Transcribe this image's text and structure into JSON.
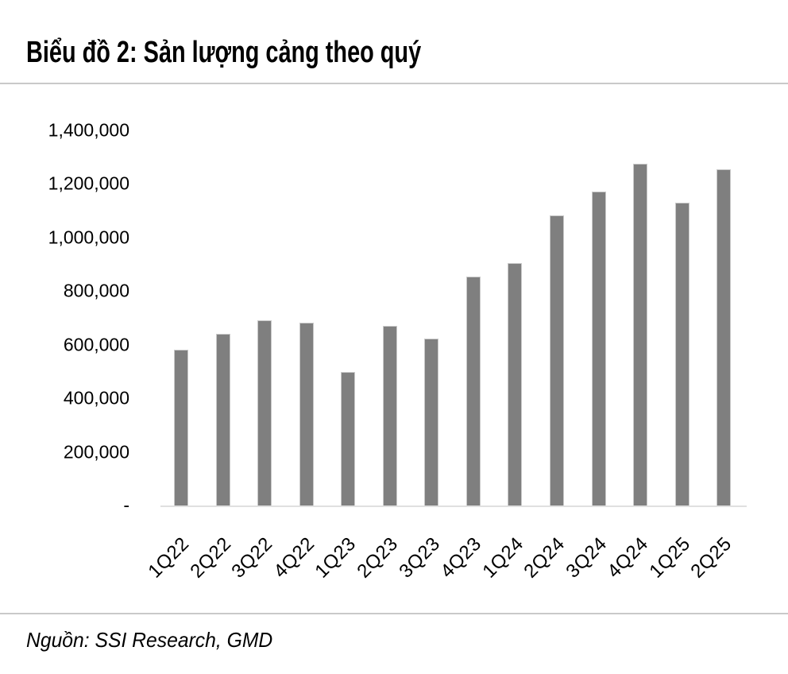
{
  "page": {
    "title": "Biểu đồ 2: Sản lượng cảng theo quý",
    "source": "Nguồn: SSI Research, GMD"
  },
  "chart_data": {
    "type": "bar",
    "title": "Biểu đồ 2: Sản lượng cảng theo quý",
    "categories": [
      "1Q22",
      "2Q22",
      "3Q22",
      "4Q22",
      "1Q23",
      "2Q23",
      "3Q23",
      "4Q23",
      "1Q24",
      "2Q24",
      "3Q24",
      "4Q24",
      "1Q25",
      "2Q25"
    ],
    "values": [
      585000,
      644000,
      693000,
      685000,
      500000,
      672000,
      624000,
      855000,
      906000,
      1085000,
      1174000,
      1277000,
      1131000,
      1257000
    ],
    "xlabel": "",
    "ylabel": "",
    "ylim": [
      0,
      1400000
    ],
    "ytick_interval": 200000,
    "ytick_labels": [
      "-",
      "200,000",
      "400,000",
      "600,000",
      "800,000",
      "1,000,000",
      "1,200,000",
      "1,400,000"
    ],
    "x_tick_rotation": -45,
    "grid": false,
    "legend": false,
    "bar_color": "#7f7f7f",
    "bar_border_color": "#c9c9c9",
    "axis_line_color": "#e0e0e0",
    "divider_color": "#c9c9c9",
    "text_color": "#000000"
  }
}
